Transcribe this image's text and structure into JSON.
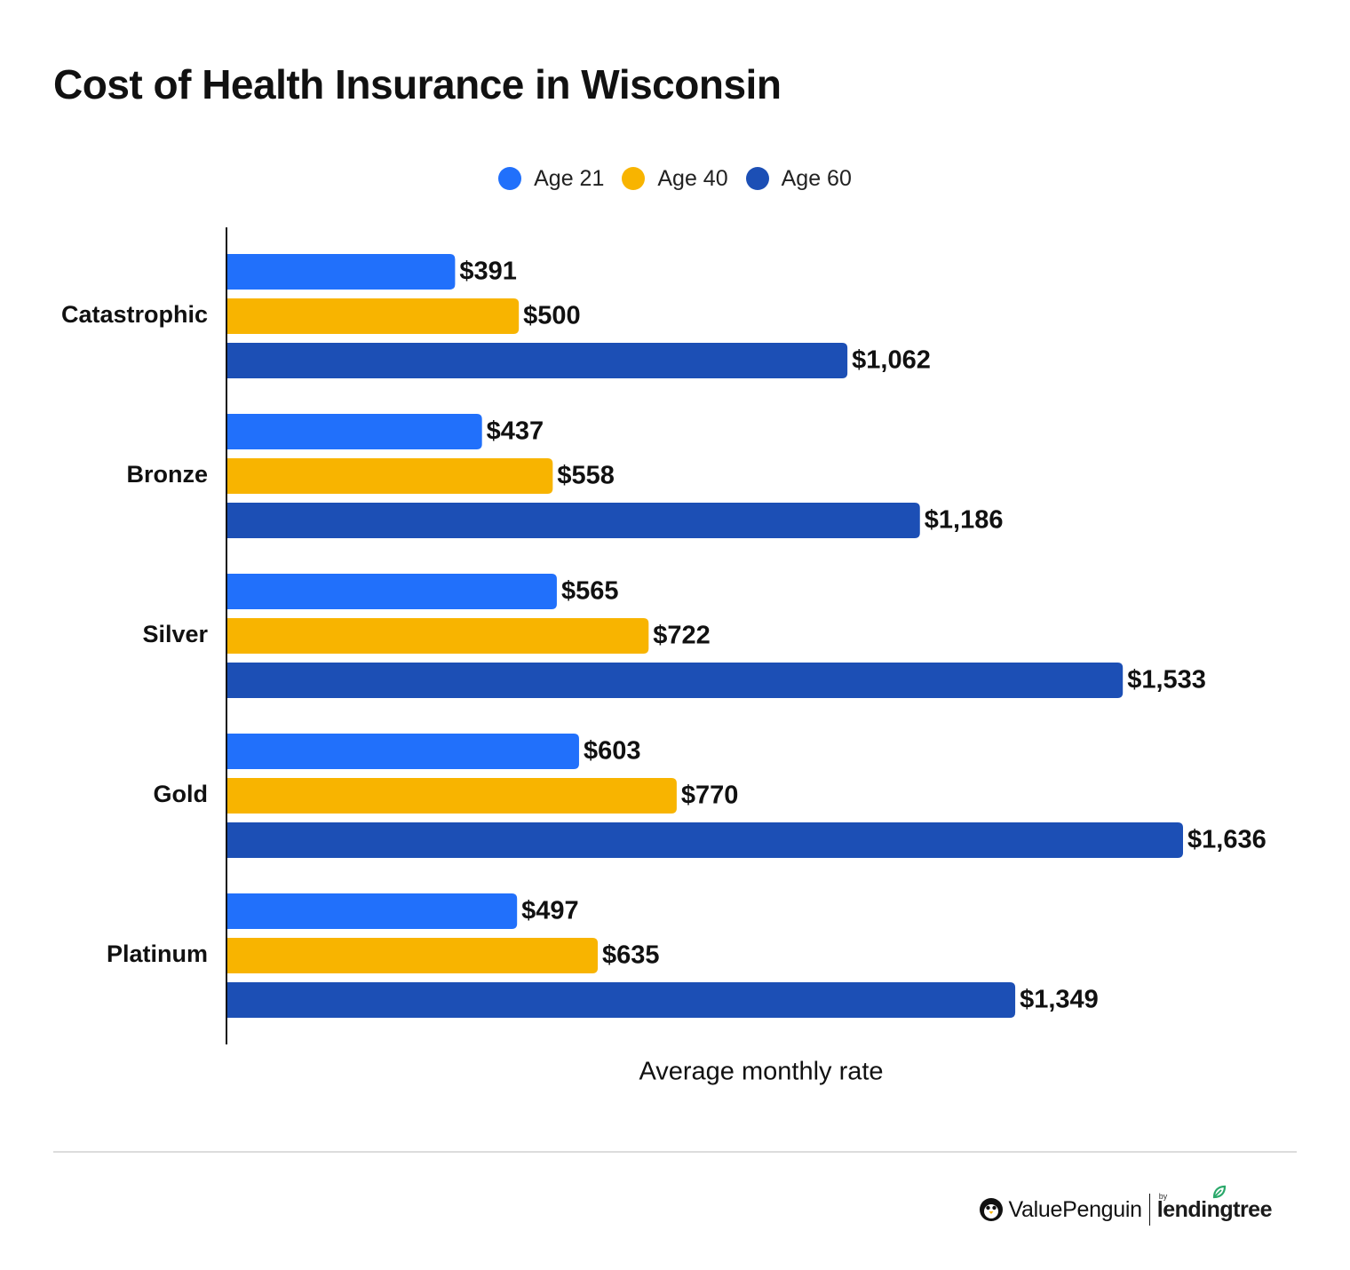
{
  "title": "Cost of Health Insurance in Wisconsin",
  "legend": [
    {
      "label": "Age 21",
      "color": "#2170fb"
    },
    {
      "label": "Age 40",
      "color": "#f8b400"
    },
    {
      "label": "Age 60",
      "color": "#1c4fb5"
    }
  ],
  "chart_data": {
    "type": "bar",
    "orientation": "horizontal",
    "categories": [
      "Catastrophic",
      "Bronze",
      "Silver",
      "Gold",
      "Platinum"
    ],
    "series": [
      {
        "name": "Age 21",
        "color": "#2170fb",
        "values": [
          391,
          437,
          565,
          603,
          497
        ],
        "labels": [
          "$391",
          "$437",
          "$565",
          "$603",
          "$497"
        ]
      },
      {
        "name": "Age 40",
        "color": "#f8b400",
        "values": [
          500,
          558,
          722,
          770,
          635
        ],
        "labels": [
          "$500",
          "$558",
          "$722",
          "$770",
          "$635"
        ]
      },
      {
        "name": "Age 60",
        "color": "#1c4fb5",
        "values": [
          1062,
          1186,
          1533,
          1636,
          1349
        ],
        "labels": [
          "$1,062",
          "$1,186",
          "$1,533",
          "$1,636",
          "$1,349"
        ]
      }
    ],
    "xlabel": "Average monthly rate",
    "ylabel": "",
    "grid": false,
    "legend_position": "top-center"
  },
  "brand": {
    "left": "ValuePenguin",
    "by": "by",
    "right": "lendingtree"
  }
}
